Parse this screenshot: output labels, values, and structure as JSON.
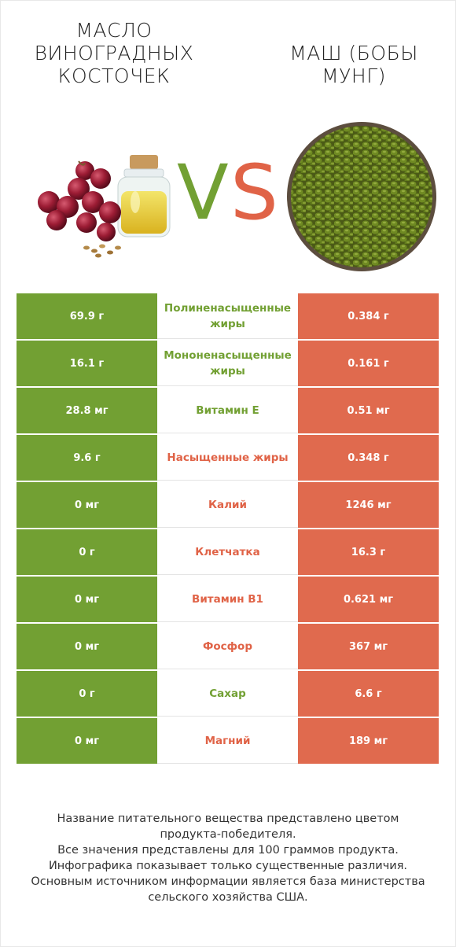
{
  "header": {
    "left_title": "МАСЛО\nВИНОГРАДНЫХ\nКОСТОЧЕК",
    "right_title": "МАШ (БОБЫ\nМУНГ)",
    "vs_left": "V",
    "vs_right": "S"
  },
  "colors": {
    "left": "#72a033",
    "right": "#e06a4e"
  },
  "rows": [
    {
      "left": "69.9 г",
      "nutrient": "Полиненасыщенные жиры",
      "right": "0.384 г",
      "winner": "left"
    },
    {
      "left": "16.1 г",
      "nutrient": "Мононенасыщенные жиры",
      "right": "0.161 г",
      "winner": "left"
    },
    {
      "left": "28.8 мг",
      "nutrient": "Витамин E",
      "right": "0.51 мг",
      "winner": "left"
    },
    {
      "left": "9.6 г",
      "nutrient": "Насыщенные жиры",
      "right": "0.348 г",
      "winner": "right"
    },
    {
      "left": "0 мг",
      "nutrient": "Калий",
      "right": "1246 мг",
      "winner": "right"
    },
    {
      "left": "0 г",
      "nutrient": "Клетчатка",
      "right": "16.3 г",
      "winner": "right"
    },
    {
      "left": "0 мг",
      "nutrient": "Витамин B1",
      "right": "0.621 мг",
      "winner": "right"
    },
    {
      "left": "0 мг",
      "nutrient": "Фосфор",
      "right": "367 мг",
      "winner": "right"
    },
    {
      "left": "0 г",
      "nutrient": "Сахар",
      "right": "6.6 г",
      "winner": "left"
    },
    {
      "left": "0 мг",
      "nutrient": "Магний",
      "right": "189 мг",
      "winner": "right"
    }
  ],
  "footer": {
    "line1": "Название питательного вещества представлено цветом",
    "line2": "продукта-победителя.",
    "line3": "Все значения представлены для 100 граммов продукта.",
    "line4": "Инфографика показывает только существенные различия.",
    "line5": "Основным источником информации является база министерства",
    "line6": "сельского хозяйства США."
  }
}
